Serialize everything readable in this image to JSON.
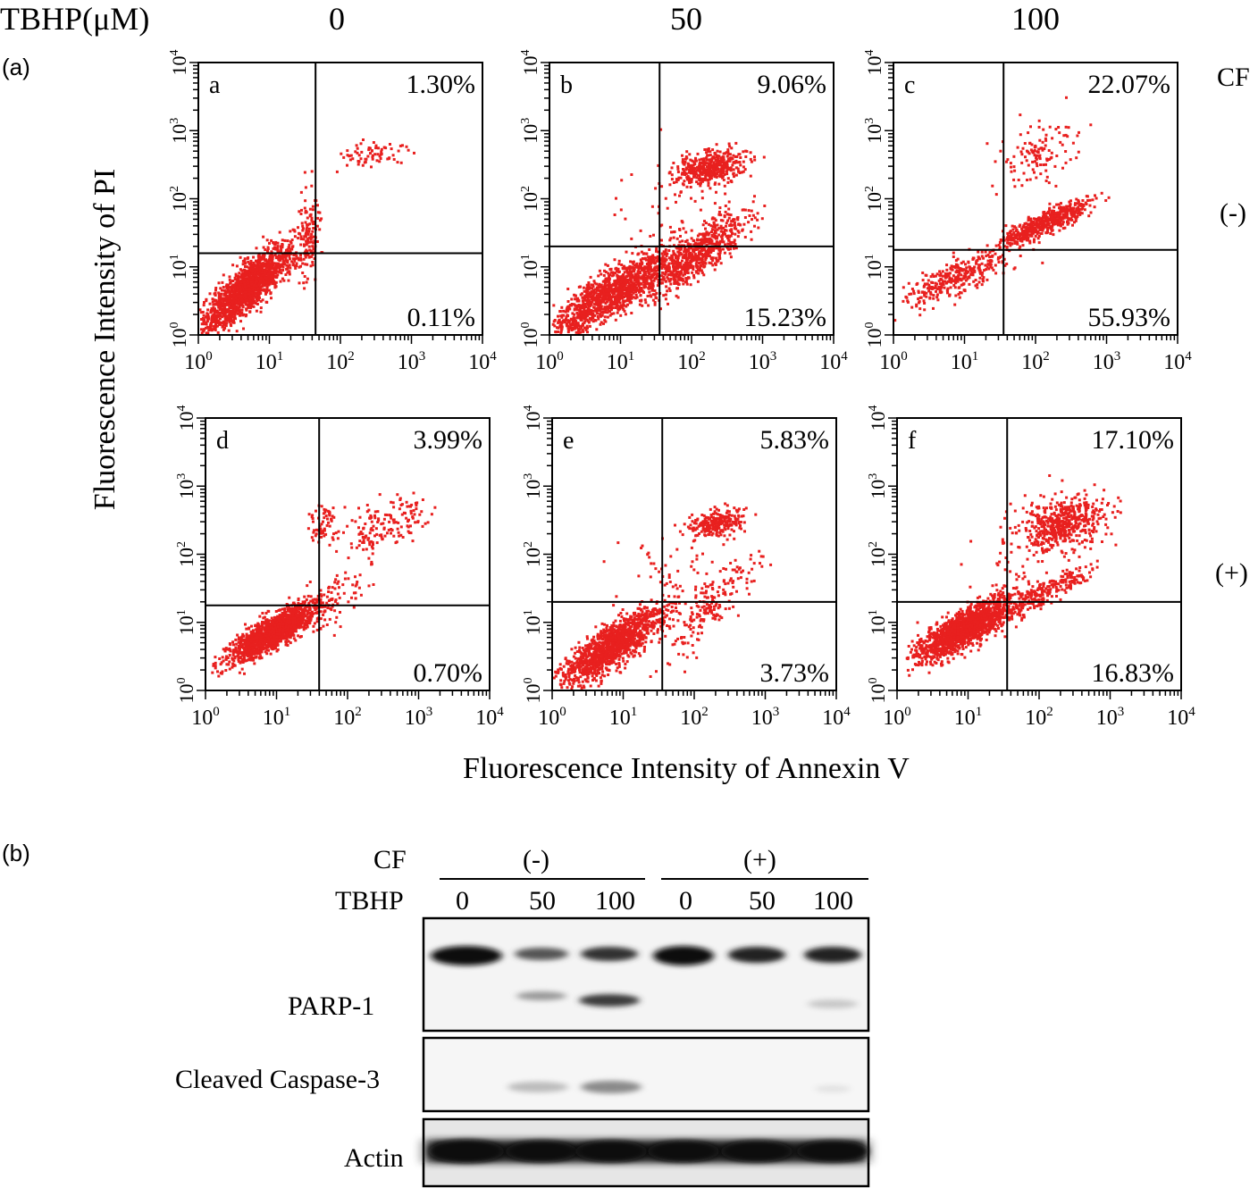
{
  "panel_a": {
    "letter": "(a)",
    "tbhp_label": "TBHP(μM)",
    "doses": [
      "0",
      "50",
      "100"
    ],
    "cf_label": "CF",
    "row_labels": [
      "(-)",
      "(+)"
    ],
    "y_axis_label": "Fluorescence Intensity of PI",
    "x_axis_label": "Fluorescence Intensity of Annexin V"
  },
  "panel_b": {
    "letter": "(b)",
    "cf_label": "CF",
    "cf_groups": [
      "(-)",
      "(+)"
    ],
    "tbhp_label": "TBHP",
    "tbhp_lanes": [
      "0",
      "50",
      "100",
      "0",
      "50",
      "100"
    ],
    "bands": [
      "PARP-1",
      "Cleaved Caspase-3",
      "Actin"
    ]
  },
  "chart_data": [
    {
      "type": "scatter",
      "panel": "a",
      "quadrant_upper_right": "1.30%",
      "quadrant_lower_right": "0.11%",
      "x_scale": "log",
      "y_scale": "log",
      "xlim": [
        1,
        10000
      ],
      "ylim": [
        1,
        10000
      ],
      "x_ticks": [
        "10^0",
        "10^1",
        "10^2",
        "10^3",
        "10^4"
      ],
      "y_ticks": [
        "10^0",
        "10^1",
        "10^2",
        "10^3",
        "10^4"
      ],
      "color": "#e8201f"
    },
    {
      "type": "scatter",
      "panel": "b",
      "quadrant_upper_right": "9.06%",
      "quadrant_lower_right": "15.23%",
      "x_scale": "log",
      "y_scale": "log",
      "xlim": [
        1,
        10000
      ],
      "ylim": [
        1,
        10000
      ],
      "x_ticks": [
        "10^0",
        "10^1",
        "10^2",
        "10^3",
        "10^4"
      ],
      "y_ticks": [
        "10^0",
        "10^1",
        "10^2",
        "10^3",
        "10^4"
      ],
      "color": "#e8201f"
    },
    {
      "type": "scatter",
      "panel": "c",
      "quadrant_upper_right": "22.07%",
      "quadrant_lower_right": "55.93%",
      "x_scale": "log",
      "y_scale": "log",
      "xlim": [
        1,
        10000
      ],
      "ylim": [
        1,
        10000
      ],
      "x_ticks": [
        "10^0",
        "10^1",
        "10^2",
        "10^3",
        "10^4"
      ],
      "y_ticks": [
        "10^0",
        "10^1",
        "10^2",
        "10^3",
        "10^4"
      ],
      "color": "#e8201f"
    },
    {
      "type": "scatter",
      "panel": "d",
      "quadrant_upper_right": "3.99%",
      "quadrant_lower_right": "0.70%",
      "x_scale": "log",
      "y_scale": "log",
      "xlim": [
        1,
        10000
      ],
      "ylim": [
        1,
        10000
      ],
      "x_ticks": [
        "10^0",
        "10^1",
        "10^2",
        "10^3",
        "10^4"
      ],
      "y_ticks": [
        "10^0",
        "10^1",
        "10^2",
        "10^3",
        "10^4"
      ],
      "color": "#e8201f"
    },
    {
      "type": "scatter",
      "panel": "e",
      "quadrant_upper_right": "5.83%",
      "quadrant_lower_right": "3.73%",
      "x_scale": "log",
      "y_scale": "log",
      "xlim": [
        1,
        10000
      ],
      "ylim": [
        1,
        10000
      ],
      "x_ticks": [
        "10^0",
        "10^1",
        "10^2",
        "10^3",
        "10^4"
      ],
      "y_ticks": [
        "10^0",
        "10^1",
        "10^2",
        "10^3",
        "10^4"
      ],
      "color": "#e8201f"
    },
    {
      "type": "scatter",
      "panel": "f",
      "quadrant_upper_right": "17.10%",
      "quadrant_lower_right": "16.83%",
      "x_scale": "log",
      "y_scale": "log",
      "xlim": [
        1,
        10000
      ],
      "ylim": [
        1,
        10000
      ],
      "x_ticks": [
        "10^0",
        "10^1",
        "10^2",
        "10^3",
        "10^4"
      ],
      "y_ticks": [
        "10^0",
        "10^1",
        "10^2",
        "10^3",
        "10^4"
      ],
      "color": "#e8201f"
    }
  ]
}
